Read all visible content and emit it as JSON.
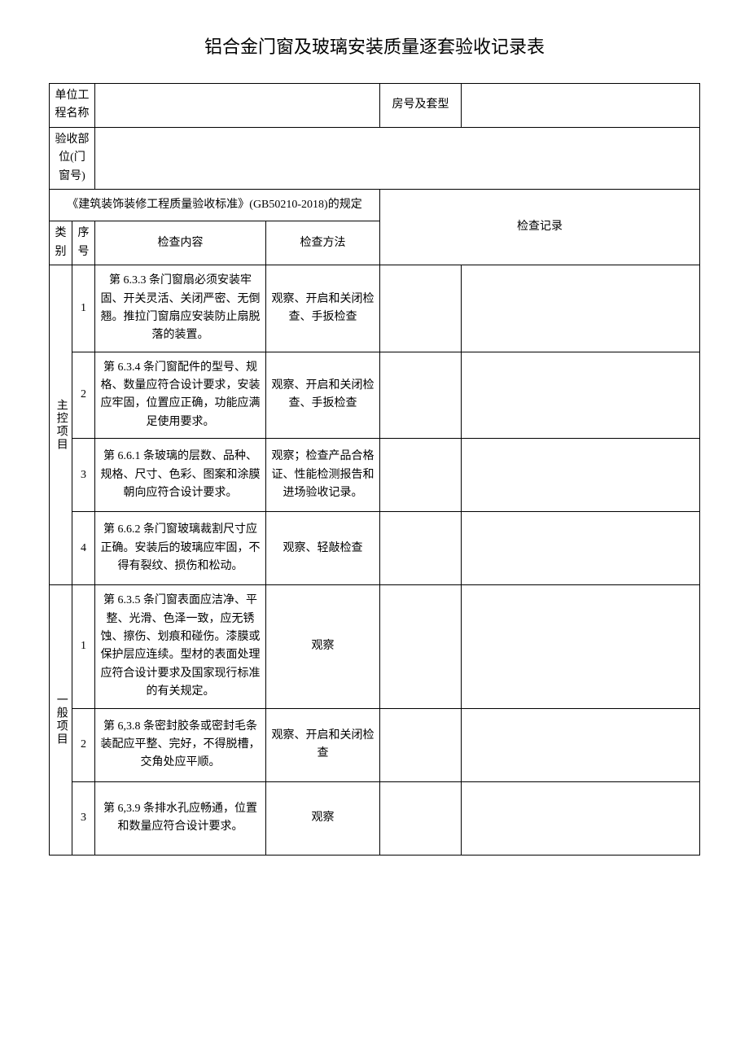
{
  "title": "铝合金门窗及玻璃安装质量逐套验收记录表",
  "header": {
    "projectNameLabel": "单位工程名称",
    "roomLabel": "房号及套型",
    "inspectPartLabel": "验收部位(门窗号)"
  },
  "spec": {
    "standardTitle": "《建筑装饰装修工程质量验收标准》(GB50210-2018)的规定",
    "inspectRecordLabel": "检查记录",
    "categoryLabel": "类别",
    "seqLabel": "序号",
    "contentLabel": "检查内容",
    "methodLabel": "检查方法"
  },
  "categories": {
    "main": "主控项目",
    "general": "一般项目"
  },
  "rows": {
    "m1": {
      "seq": "1",
      "content": "第 6.3.3 条门窗扇必须安装牢固、开关灵活、关闭严密、无倒翘。推拉门窗扇应安装防止扇脱落的装置。",
      "method": "观察、开启和关闭检查、手扳检查"
    },
    "m2": {
      "seq": "2",
      "content": "第 6.3.4 条门窗配件的型号、规格、数量应符合设计要求，安装应牢固，位置应正确，功能应满足使用要求。",
      "method": "观察、开启和关闭检查、手扳检查"
    },
    "m3": {
      "seq": "3",
      "content": "第 6.6.1 条玻璃的层数、品种、规格、尺寸、色彩、图案和涂膜朝向应符合设计要求。",
      "method": "观察；检查产品合格证、性能检测报告和进场验收记录。"
    },
    "m4": {
      "seq": "4",
      "content": "第 6.6.2 条门窗玻璃裁割尺寸应正确。安装后的玻璃应牢固，不得有裂纹、损伤和松动。",
      "method": "观察、轻敲检查"
    },
    "g1": {
      "seq": "1",
      "content": "第 6.3.5 条门窗表面应洁净、平整、光滑、色泽一致，应无锈蚀、擦伤、划痕和碰伤。漆膜或保护层应连续。型材的表面处理应符合设计要求及国家现行标准的有关规定。",
      "method": "观察"
    },
    "g2": {
      "seq": "2",
      "content": "第 6,3.8 条密封胶条或密封毛条装配应平整、完好，不得脱槽，交角处应平顺。",
      "method": "观察、开启和关闭检查"
    },
    "g3": {
      "seq": "3",
      "content": "第 6,3.9 条排水孔应畅通，位置和数量应符合设计要求。",
      "method": "观察"
    }
  }
}
